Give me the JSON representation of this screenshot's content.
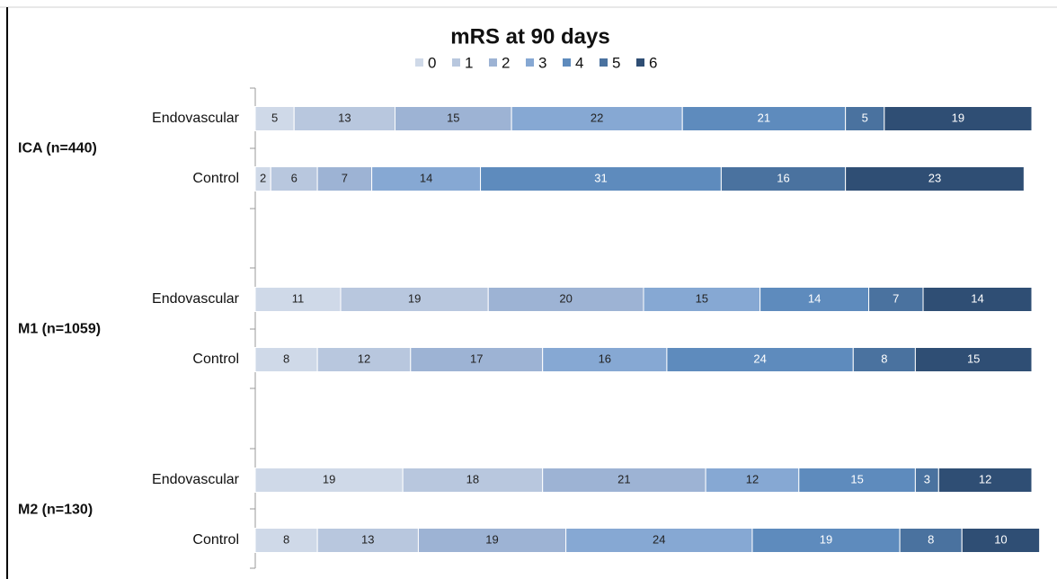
{
  "chart_data": {
    "type": "stacked-bar-horizontal",
    "title": "mRS at 90 days",
    "categories": [
      "Endovascular",
      "Control",
      "Endovascular",
      "Control",
      "Endovascular",
      "Control"
    ],
    "groups": [
      "ICA (n=440)",
      "M1 (n=1059)",
      "M2 (n=130)"
    ],
    "xlim": [
      0,
      100
    ],
    "series": [
      {
        "name": "0",
        "color": "#cfd9e8",
        "values": [
          5,
          2,
          11,
          8,
          19,
          8
        ]
      },
      {
        "name": "1",
        "color": "#b8c7de",
        "values": [
          13,
          6,
          19,
          12,
          18,
          13
        ]
      },
      {
        "name": "2",
        "color": "#9db3d4",
        "values": [
          15,
          7,
          20,
          17,
          21,
          19
        ]
      },
      {
        "name": "3",
        "color": "#86a8d3",
        "values": [
          22,
          14,
          15,
          16,
          12,
          24
        ]
      },
      {
        "name": "4",
        "color": "#5e8bbd",
        "values": [
          21,
          31,
          14,
          24,
          15,
          19
        ]
      },
      {
        "name": "5",
        "color": "#4a729f",
        "values": [
          5,
          16,
          7,
          8,
          3,
          8
        ]
      },
      {
        "name": "6",
        "color": "#2f4e74",
        "values": [
          19,
          23,
          14,
          15,
          12,
          10
        ]
      }
    ]
  }
}
